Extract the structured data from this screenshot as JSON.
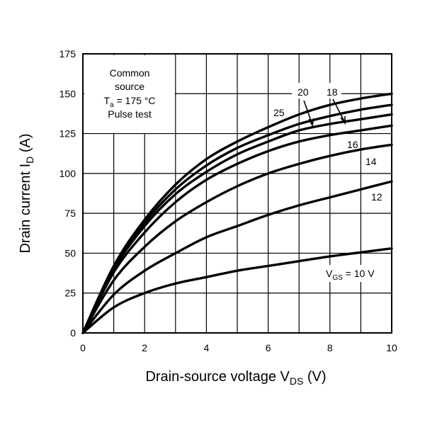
{
  "chart_data": {
    "type": "line",
    "title": "",
    "xlabel": {
      "text": "Drain-source voltage  V",
      "sub": "DS",
      "unit": "  (V)"
    },
    "ylabel": {
      "text": "Drain current  I",
      "sub": "D",
      "unit": "  (A)"
    },
    "xlim": [
      0,
      10
    ],
    "ylim": [
      0,
      175
    ],
    "x_ticks": [
      "0",
      "2",
      "4",
      "6",
      "8",
      "10"
    ],
    "y_ticks": [
      "0",
      "25",
      "50",
      "75",
      "100",
      "125",
      "150",
      "175"
    ],
    "grid": true,
    "x": [
      0,
      1,
      2,
      3,
      4,
      5,
      6,
      7,
      8,
      9,
      10
    ],
    "series": [
      {
        "name": "VGS = 10 V",
        "label": "10",
        "values": [
          0,
          16,
          25,
          31,
          35,
          39,
          42,
          45,
          48,
          50.5,
          53
        ]
      },
      {
        "name": "VGS = 12 V",
        "label": "12",
        "values": [
          0,
          24,
          39,
          50,
          60,
          67,
          74,
          80,
          85,
          90,
          95
        ]
      },
      {
        "name": "VGS = 14 V",
        "label": "14",
        "values": [
          0,
          33,
          54,
          70,
          82,
          92,
          100,
          106,
          111,
          115,
          118
        ]
      },
      {
        "name": "VGS = 16 V",
        "label": "16",
        "values": [
          0,
          38,
          63,
          82,
          96,
          106,
          114,
          120,
          124,
          127,
          130
        ]
      },
      {
        "name": "VGS = 18 V",
        "label": "18",
        "values": [
          0,
          40,
          67,
          87,
          101,
          112,
          120,
          127,
          131,
          134,
          137
        ]
      },
      {
        "name": "VGS = 20 V",
        "label": "20",
        "values": [
          0,
          41,
          69,
          90,
          105,
          116,
          124,
          131,
          136,
          140,
          143
        ]
      },
      {
        "name": "VGS = 25 V",
        "label": "25",
        "values": [
          0,
          42,
          71,
          93,
          109,
          120,
          129,
          137,
          143,
          147,
          150
        ]
      }
    ],
    "annotations": {
      "conditions": [
        "Common",
        "source",
        "T",
        "a",
        " = 175 °C",
        "Pulse test"
      ],
      "vgs_label": {
        "prefix": "V",
        "sub": "GS",
        "suffix": " = 10 V"
      }
    }
  }
}
